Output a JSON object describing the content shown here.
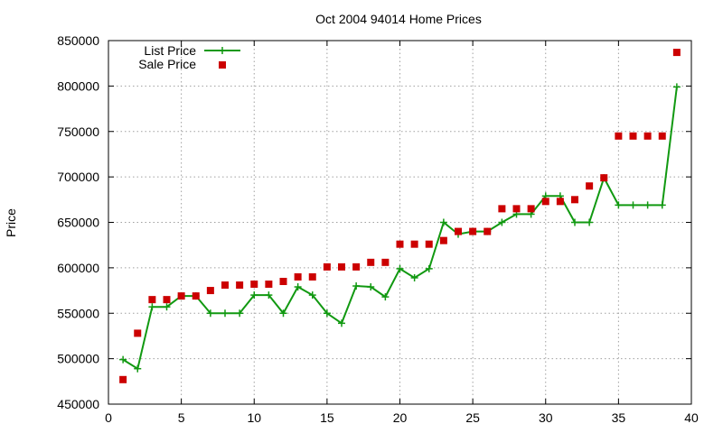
{
  "chart_data": {
    "type": "line",
    "title": "Oct 2004 94014 Home Prices",
    "xlabel": "",
    "ylabel": "Price",
    "xlim": [
      0,
      40
    ],
    "ylim": [
      450000,
      850000
    ],
    "x_ticks": [
      0,
      5,
      10,
      15,
      20,
      25,
      30,
      35,
      40
    ],
    "x_tick_labels": [
      "0",
      "5",
      "10",
      "15",
      "20",
      "25",
      "30",
      "35",
      "40"
    ],
    "y_ticks": [
      450000,
      500000,
      550000,
      600000,
      650000,
      700000,
      750000,
      800000,
      850000
    ],
    "y_tick_labels": [
      "450000",
      "500000",
      "550000",
      "600000",
      "650000",
      "700000",
      "750000",
      "800000",
      "850000"
    ],
    "grid": true,
    "legend_position": "top-left",
    "series": [
      {
        "name": "List Price",
        "style": "line-with-plus-markers",
        "color": "#119911",
        "x": [
          1,
          2,
          3,
          4,
          5,
          6,
          7,
          8,
          9,
          10,
          11,
          12,
          13,
          14,
          15,
          16,
          17,
          18,
          19,
          20,
          21,
          22,
          23,
          24,
          25,
          26,
          27,
          28,
          29,
          30,
          31,
          32,
          33,
          34,
          35,
          36,
          37,
          38,
          39
        ],
        "values": [
          499000,
          489000,
          557000,
          557000,
          569000,
          569000,
          550000,
          550000,
          550000,
          570000,
          570000,
          550000,
          579000,
          570000,
          550000,
          539000,
          580000,
          579000,
          568000,
          599000,
          589000,
          599000,
          650000,
          637000,
          640000,
          640000,
          650000,
          659000,
          659000,
          679000,
          679000,
          650000,
          650000,
          699000,
          669000,
          669000,
          669000,
          669000,
          799000
        ]
      },
      {
        "name": "Sale Price",
        "style": "square-markers",
        "color": "#cc0000",
        "x": [
          1,
          2,
          3,
          4,
          5,
          6,
          7,
          8,
          9,
          10,
          11,
          12,
          13,
          14,
          15,
          16,
          17,
          18,
          19,
          20,
          21,
          22,
          23,
          24,
          25,
          26,
          27,
          28,
          29,
          30,
          31,
          32,
          33,
          34,
          35,
          36,
          37,
          38,
          39
        ],
        "values": [
          477000,
          528000,
          565000,
          565000,
          569000,
          569000,
          575000,
          581000,
          581000,
          582000,
          582000,
          585000,
          590000,
          590000,
          601000,
          601000,
          601000,
          606000,
          606000,
          626000,
          626000,
          626000,
          630000,
          640000,
          640000,
          640000,
          665000,
          665000,
          665000,
          673000,
          673000,
          675000,
          690000,
          699000,
          745000,
          745000,
          745000,
          745000,
          837000
        ]
      }
    ]
  }
}
